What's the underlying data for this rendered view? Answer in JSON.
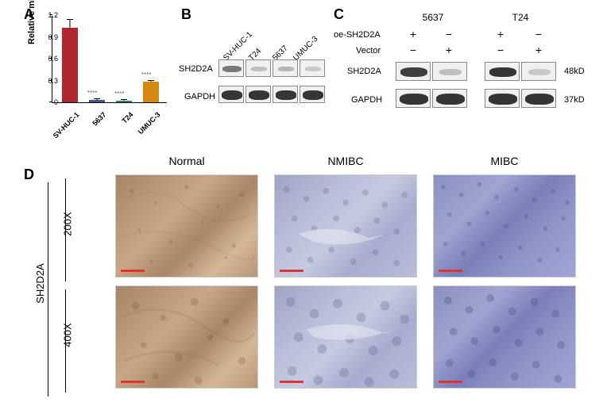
{
  "panelA": {
    "label": "A",
    "y_axis_label": "Relative mRNA expression",
    "y_ticks": [
      0,
      0.3,
      0.6,
      0.9,
      1.2
    ],
    "y_max": 1.2,
    "bars": [
      {
        "name": "SV-HUC-1",
        "value": 1.03,
        "error": 0.11,
        "color": "#b0282e",
        "sig": ""
      },
      {
        "name": "5637",
        "value": 0.03,
        "error": 0.01,
        "color": "#3b5998",
        "sig": "****"
      },
      {
        "name": "T24",
        "value": 0.025,
        "error": 0.01,
        "color": "#2e8b57",
        "sig": "****"
      },
      {
        "name": "UMUC-3",
        "value": 0.28,
        "error": 0.02,
        "color": "#d68910",
        "sig": "****"
      }
    ]
  },
  "panelB": {
    "label": "B",
    "lanes": [
      "SV-HUC-1",
      "T24",
      "5637",
      "UMUC-3"
    ],
    "proteins": [
      "SH2D2A",
      "GAPDH"
    ],
    "sh2d2a_intensities": [
      0.6,
      0.2,
      0.25,
      0.15
    ],
    "gapdh_intensities": [
      0.9,
      0.9,
      0.9,
      0.9
    ]
  },
  "panelC": {
    "label": "C",
    "cell_lines": [
      "5637",
      "T24"
    ],
    "conditions": [
      "oe-SH2D2A",
      "Vector"
    ],
    "condition_matrix": [
      [
        "+",
        "−"
      ],
      [
        "−",
        "+"
      ]
    ],
    "proteins": [
      "SH2D2A",
      "GAPDH"
    ],
    "sizes": [
      "48kD",
      "37kD"
    ],
    "sh2d2a_intensities_5637": [
      0.85,
      0.2
    ],
    "sh2d2a_intensities_t24": [
      0.9,
      0.15
    ],
    "gapdh_intensities": [
      0.9,
      0.9
    ]
  },
  "panelD": {
    "label": "D",
    "row_label": "SH2D2A",
    "columns": [
      "Normal",
      "NMIBC",
      "MIBC"
    ],
    "magnifications": [
      "200X",
      "400X"
    ]
  },
  "colors": {
    "background": "#ffffff",
    "text": "#000000",
    "scale_bar": "#dd3333"
  }
}
